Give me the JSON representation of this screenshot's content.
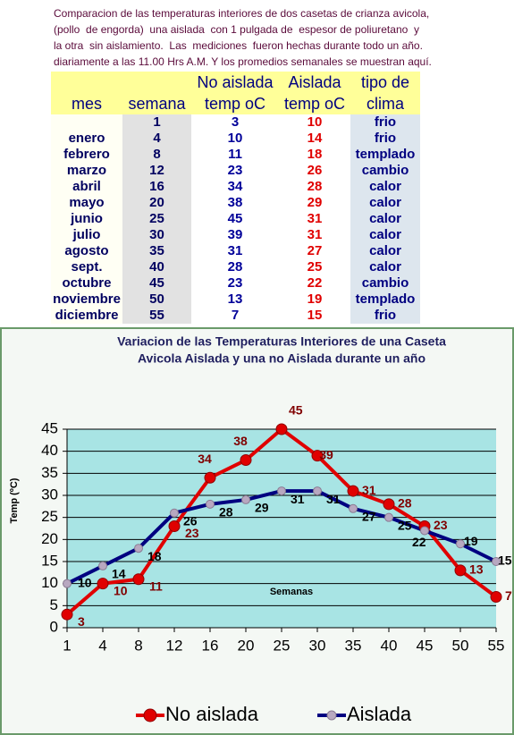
{
  "document": {
    "intro": [
      "Comparacion de las temperaturas interiores de dos casetas de crianza avicola,",
      "(pollo  de engorda)  una aislada  con 1 pulgada de  espesor de poliuretano  y",
      "la otra  sin aislamiento.  Las  mediciones  fueron hechas durante todo un año.",
      "diariamente a las 11.00 Hrs A.M. Y los promedios semanales se muestran aquí."
    ]
  },
  "table": {
    "header_top": [
      null,
      null,
      "No aislada",
      "Aislada",
      "tipo de"
    ],
    "header_bottom": [
      "mes",
      "semana",
      "temp oC",
      "temp oC",
      "clima"
    ],
    "rows": [
      [
        null,
        "1",
        "3",
        "10",
        "frio"
      ],
      [
        "enero",
        "4",
        "10",
        "14",
        "frio"
      ],
      [
        "febrero",
        "8",
        "11",
        "18",
        "templado"
      ],
      [
        "marzo",
        "12",
        "23",
        "26",
        "cambio"
      ],
      [
        "abril",
        "16",
        "34",
        "28",
        "calor"
      ],
      [
        "mayo",
        "20",
        "38",
        "29",
        "calor"
      ],
      [
        "junio",
        "25",
        "45",
        "31",
        "calor"
      ],
      [
        "julio",
        "30",
        "39",
        "31",
        "calor"
      ],
      [
        "agosto",
        "35",
        "31",
        "27",
        "calor"
      ],
      [
        "sept.",
        "40",
        "28",
        "25",
        "calor"
      ],
      [
        "octubre",
        "45",
        "23",
        "22",
        "cambio"
      ],
      [
        "noviembre",
        "50",
        "13",
        "19",
        "templado"
      ],
      [
        "diciembre",
        "55",
        "7",
        "15",
        "frio"
      ]
    ]
  },
  "chart_data": {
    "type": "line",
    "title": [
      "Variacion de las Temperaturas Interiores de una Caseta",
      "Avicola Aislada y una no Aislada durante un año"
    ],
    "y_label": "Temp (ºC)",
    "annotation": "Semanas",
    "categories": [
      "1",
      "4",
      "8",
      "12",
      "16",
      "20",
      "25",
      "30",
      "35",
      "40",
      "45",
      "50",
      "55"
    ],
    "series": [
      {
        "name": "No aislada",
        "color": "#e00000",
        "marker_color": "#e00000",
        "label_color": "#800000",
        "values": [
          3,
          10,
          11,
          23,
          34,
          38,
          45,
          39,
          31,
          28,
          23,
          13,
          7
        ]
      },
      {
        "name": "Aislada",
        "color": "#000080",
        "marker_color": "#b8a8c0",
        "label_color": "#000000",
        "values": [
          10,
          14,
          18,
          26,
          28,
          29,
          31,
          31,
          27,
          25,
          22,
          19,
          15
        ]
      }
    ],
    "ylim": [
      0,
      45
    ],
    "yticks": [
      0,
      5,
      10,
      15,
      20,
      25,
      30,
      35,
      40,
      45
    ],
    "grid": true,
    "legend": "bottom"
  }
}
